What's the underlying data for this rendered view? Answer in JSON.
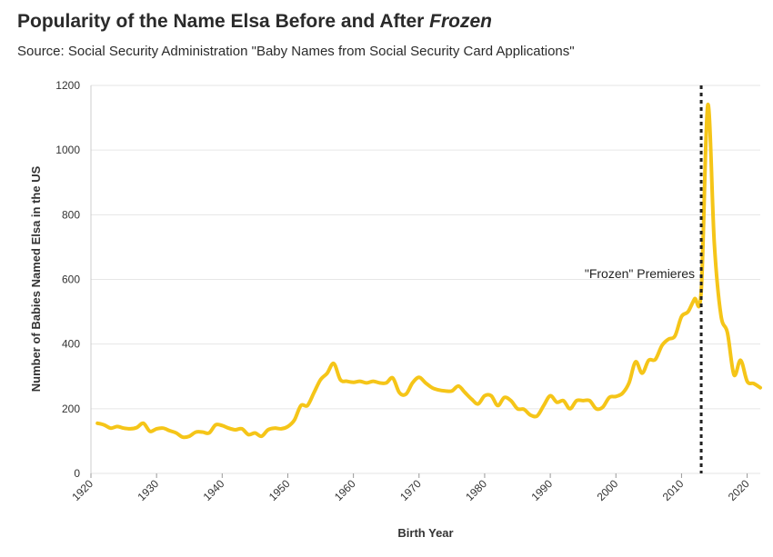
{
  "chart_data": {
    "type": "line",
    "title_main": "Popularity of the Name Elsa Before and After ",
    "title_emph": "Frozen",
    "subtitle": "Source: Social Security Administration \"Baby Names from Social Security Card Applications\"",
    "xlabel": "Birth Year",
    "ylabel": "Number of Babies Named Elsa in the US",
    "xlim": [
      1920,
      2022
    ],
    "ylim": [
      0,
      1200
    ],
    "xticks": [
      1920,
      1930,
      1940,
      1950,
      1960,
      1970,
      1980,
      1990,
      2000,
      2010,
      2020
    ],
    "yticks": [
      0,
      200,
      400,
      600,
      800,
      1000,
      1200
    ],
    "grid": true,
    "line_color": "#f5c518",
    "series": [
      {
        "x": [
          1921,
          1922,
          1923,
          1924,
          1925,
          1926,
          1927,
          1928,
          1929,
          1930,
          1931,
          1932,
          1933,
          1934,
          1935,
          1936,
          1937,
          1938,
          1939,
          1940,
          1941,
          1942,
          1943,
          1944,
          1945,
          1946,
          1947,
          1948,
          1949,
          1950,
          1951,
          1952,
          1953,
          1954,
          1955,
          1956,
          1957,
          1958,
          1959,
          1960,
          1961,
          1962,
          1963,
          1964,
          1965,
          1966,
          1967,
          1968,
          1969,
          1970,
          1971,
          1972,
          1973,
          1974,
          1975,
          1976,
          1977,
          1978,
          1979,
          1980,
          1981,
          1982,
          1983,
          1984,
          1985,
          1986,
          1987,
          1988,
          1989,
          1990,
          1991,
          1992,
          1993,
          1994,
          1995,
          1996,
          1997,
          1998,
          1999,
          2000,
          2001,
          2002,
          2003,
          2004,
          2005,
          2006,
          2007,
          2008,
          2009,
          2010,
          2011,
          2012,
          2013,
          2014,
          2015,
          2016,
          2017,
          2018,
          2019,
          2020,
          2021,
          2022
        ],
        "values": [
          155,
          150,
          140,
          145,
          140,
          138,
          142,
          155,
          130,
          138,
          140,
          132,
          125,
          112,
          115,
          128,
          128,
          125,
          150,
          148,
          140,
          135,
          138,
          120,
          125,
          115,
          135,
          140,
          138,
          145,
          165,
          210,
          210,
          250,
          290,
          310,
          340,
          290,
          285,
          282,
          285,
          280,
          285,
          280,
          280,
          295,
          250,
          245,
          280,
          297,
          280,
          265,
          258,
          255,
          255,
          270,
          250,
          230,
          215,
          240,
          240,
          210,
          235,
          225,
          200,
          198,
          180,
          178,
          210,
          240,
          220,
          225,
          200,
          225,
          225,
          225,
          200,
          205,
          235,
          238,
          248,
          280,
          345,
          310,
          350,
          352,
          395,
          415,
          425,
          485,
          500,
          540,
          565,
          1140,
          710,
          490,
          435,
          305,
          350,
          285,
          278,
          265
        ]
      }
    ],
    "annotation": {
      "x": 2013,
      "label": "\"Frozen\" Premieres"
    }
  }
}
